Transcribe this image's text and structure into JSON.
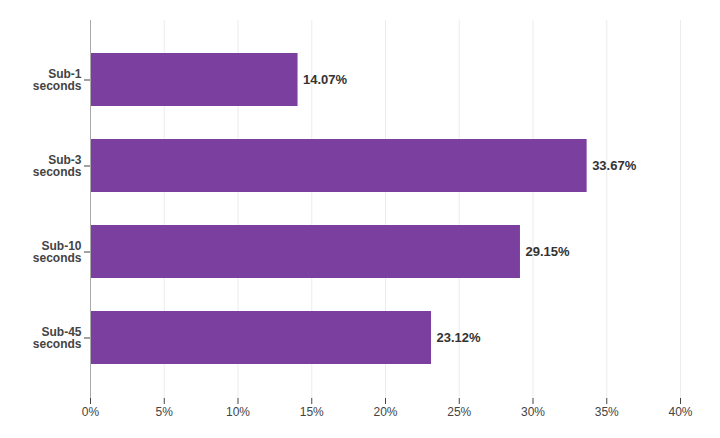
{
  "chart_data": {
    "type": "bar",
    "orientation": "horizontal",
    "categories": [
      "Sub-45\nseconds",
      "Sub-10\nseconds",
      "Sub-3\nseconds",
      "Sub-1\nseconds"
    ],
    "values": [
      23.12,
      29.15,
      33.67,
      14.07
    ],
    "value_labels": [
      "23.12%",
      "29.15%",
      "33.67%",
      "14.07%"
    ],
    "data_labels": true,
    "color": "#7B3FA0",
    "xlim": [
      0,
      40
    ],
    "xticks": [
      {
        "value": 0,
        "label": "0%"
      },
      {
        "value": 5,
        "label": "5%"
      },
      {
        "value": 10,
        "label": "10%"
      },
      {
        "value": 15,
        "label": "15%"
      },
      {
        "value": 20,
        "label": "20%"
      },
      {
        "value": 25,
        "label": "25%"
      },
      {
        "value": 30,
        "label": "30%"
      },
      {
        "value": 35,
        "label": "35%"
      },
      {
        "value": 40,
        "label": "40%"
      }
    ],
    "grid": true
  }
}
